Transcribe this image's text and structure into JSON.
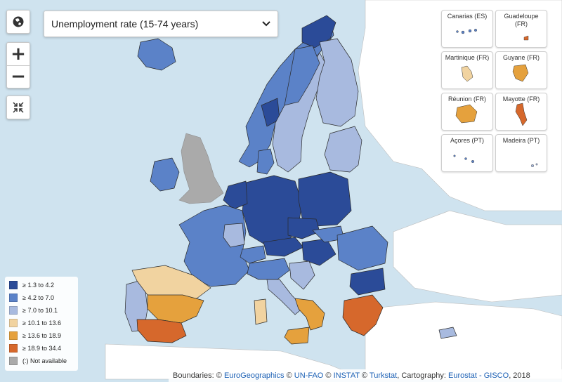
{
  "indicator": {
    "label": "Unemployment rate (15-74 years)"
  },
  "controls": {
    "globe": "globe-icon",
    "zoom_in": "+",
    "zoom_out": "−",
    "reset": "collapse-arrows-icon"
  },
  "colors": {
    "c1": "#2b4b98",
    "c2": "#5b82c8",
    "c3": "#a8badf",
    "c4": "#f1d3a0",
    "c5": "#e5a13d",
    "c6": "#d6682c",
    "na": "#aaaaaa",
    "nondata": "#ffffff",
    "sea": "#cfe3ef"
  },
  "insets": [
    {
      "key": "canarias",
      "label": "Canarias (ES)",
      "class": "c2"
    },
    {
      "key": "guadeloupe",
      "label": "Guadeloupe\n(FR)",
      "class": "c6"
    },
    {
      "key": "martinique",
      "label": "Martinique (FR)",
      "class": "c4"
    },
    {
      "key": "guyane",
      "label": "Guyane (FR)",
      "class": "c5"
    },
    {
      "key": "reunion",
      "label": "Réunion (FR)",
      "class": "c5"
    },
    {
      "key": "mayotte",
      "label": "Mayotte (FR)",
      "class": "c6"
    },
    {
      "key": "acores",
      "label": "Açores (PT)",
      "class": "c2"
    },
    {
      "key": "madeira",
      "label": "Madeira (PT)",
      "class": "c3"
    }
  ],
  "legend": {
    "items": [
      {
        "label": "≥ 1.3 to 4.2",
        "color": "#2b4b98"
      },
      {
        "label": "≥ 4.2 to 7.0",
        "color": "#5b82c8"
      },
      {
        "label": "≥ 7.0 to 10.1",
        "color": "#a8badf"
      },
      {
        "label": "≥ 10.1 to 13.6",
        "color": "#f1d3a0"
      },
      {
        "label": "≥ 13.6 to 18.9",
        "color": "#e5a13d"
      },
      {
        "label": "≥ 18.9 to 34.4",
        "color": "#d6682c"
      },
      {
        "label": "(:) Not available",
        "color": "#aaaaaa"
      }
    ]
  },
  "attribution": {
    "prefix": "Boundaries: ©",
    "eurogeographics": "EuroGeographics",
    "sep1": "©",
    "unfao": "UN-FAO",
    "sep2": "©",
    "instat": "INSTAT",
    "sep3": "©",
    "turkstat": "Turkstat",
    "mid": ", Cartography:",
    "eurostat": "Eurostat - GISCO",
    "suffix": ", 2018"
  },
  "regions": [
    {
      "name": "iceland",
      "class": "c2"
    },
    {
      "name": "ireland",
      "class": "c2"
    },
    {
      "name": "norway",
      "class": "c2"
    },
    {
      "name": "norway-north",
      "class": "c1"
    },
    {
      "name": "sweden",
      "class": "c3"
    },
    {
      "name": "sweden-north",
      "class": "c2"
    },
    {
      "name": "finland",
      "class": "c3"
    },
    {
      "name": "baltics",
      "class": "c3"
    },
    {
      "name": "denmark",
      "class": "c2"
    },
    {
      "name": "germany",
      "class": "c1"
    },
    {
      "name": "poland",
      "class": "c1"
    },
    {
      "name": "czechia",
      "class": "c1"
    },
    {
      "name": "netherlands",
      "class": "c1"
    },
    {
      "name": "france",
      "class": "c2"
    },
    {
      "name": "france-east",
      "class": "c3"
    },
    {
      "name": "switzerland",
      "class": "c2"
    },
    {
      "name": "austria",
      "class": "c1"
    },
    {
      "name": "hungary",
      "class": "c1"
    },
    {
      "name": "slovakia",
      "class": "c2"
    },
    {
      "name": "romania",
      "class": "c2"
    },
    {
      "name": "bulgaria",
      "class": "c1"
    },
    {
      "name": "italy-north",
      "class": "c2"
    },
    {
      "name": "italy-centre",
      "class": "c3"
    },
    {
      "name": "italy-south",
      "class": "c5"
    },
    {
      "name": "sicily",
      "class": "c5"
    },
    {
      "name": "sardinia",
      "class": "c4"
    },
    {
      "name": "croatia",
      "class": "c3"
    },
    {
      "name": "greece",
      "class": "c6"
    },
    {
      "name": "portugal",
      "class": "c3"
    },
    {
      "name": "spain-north",
      "class": "c4"
    },
    {
      "name": "spain-centre",
      "class": "c5"
    },
    {
      "name": "spain-south",
      "class": "c6"
    },
    {
      "name": "cyprus",
      "class": "c3"
    }
  ]
}
